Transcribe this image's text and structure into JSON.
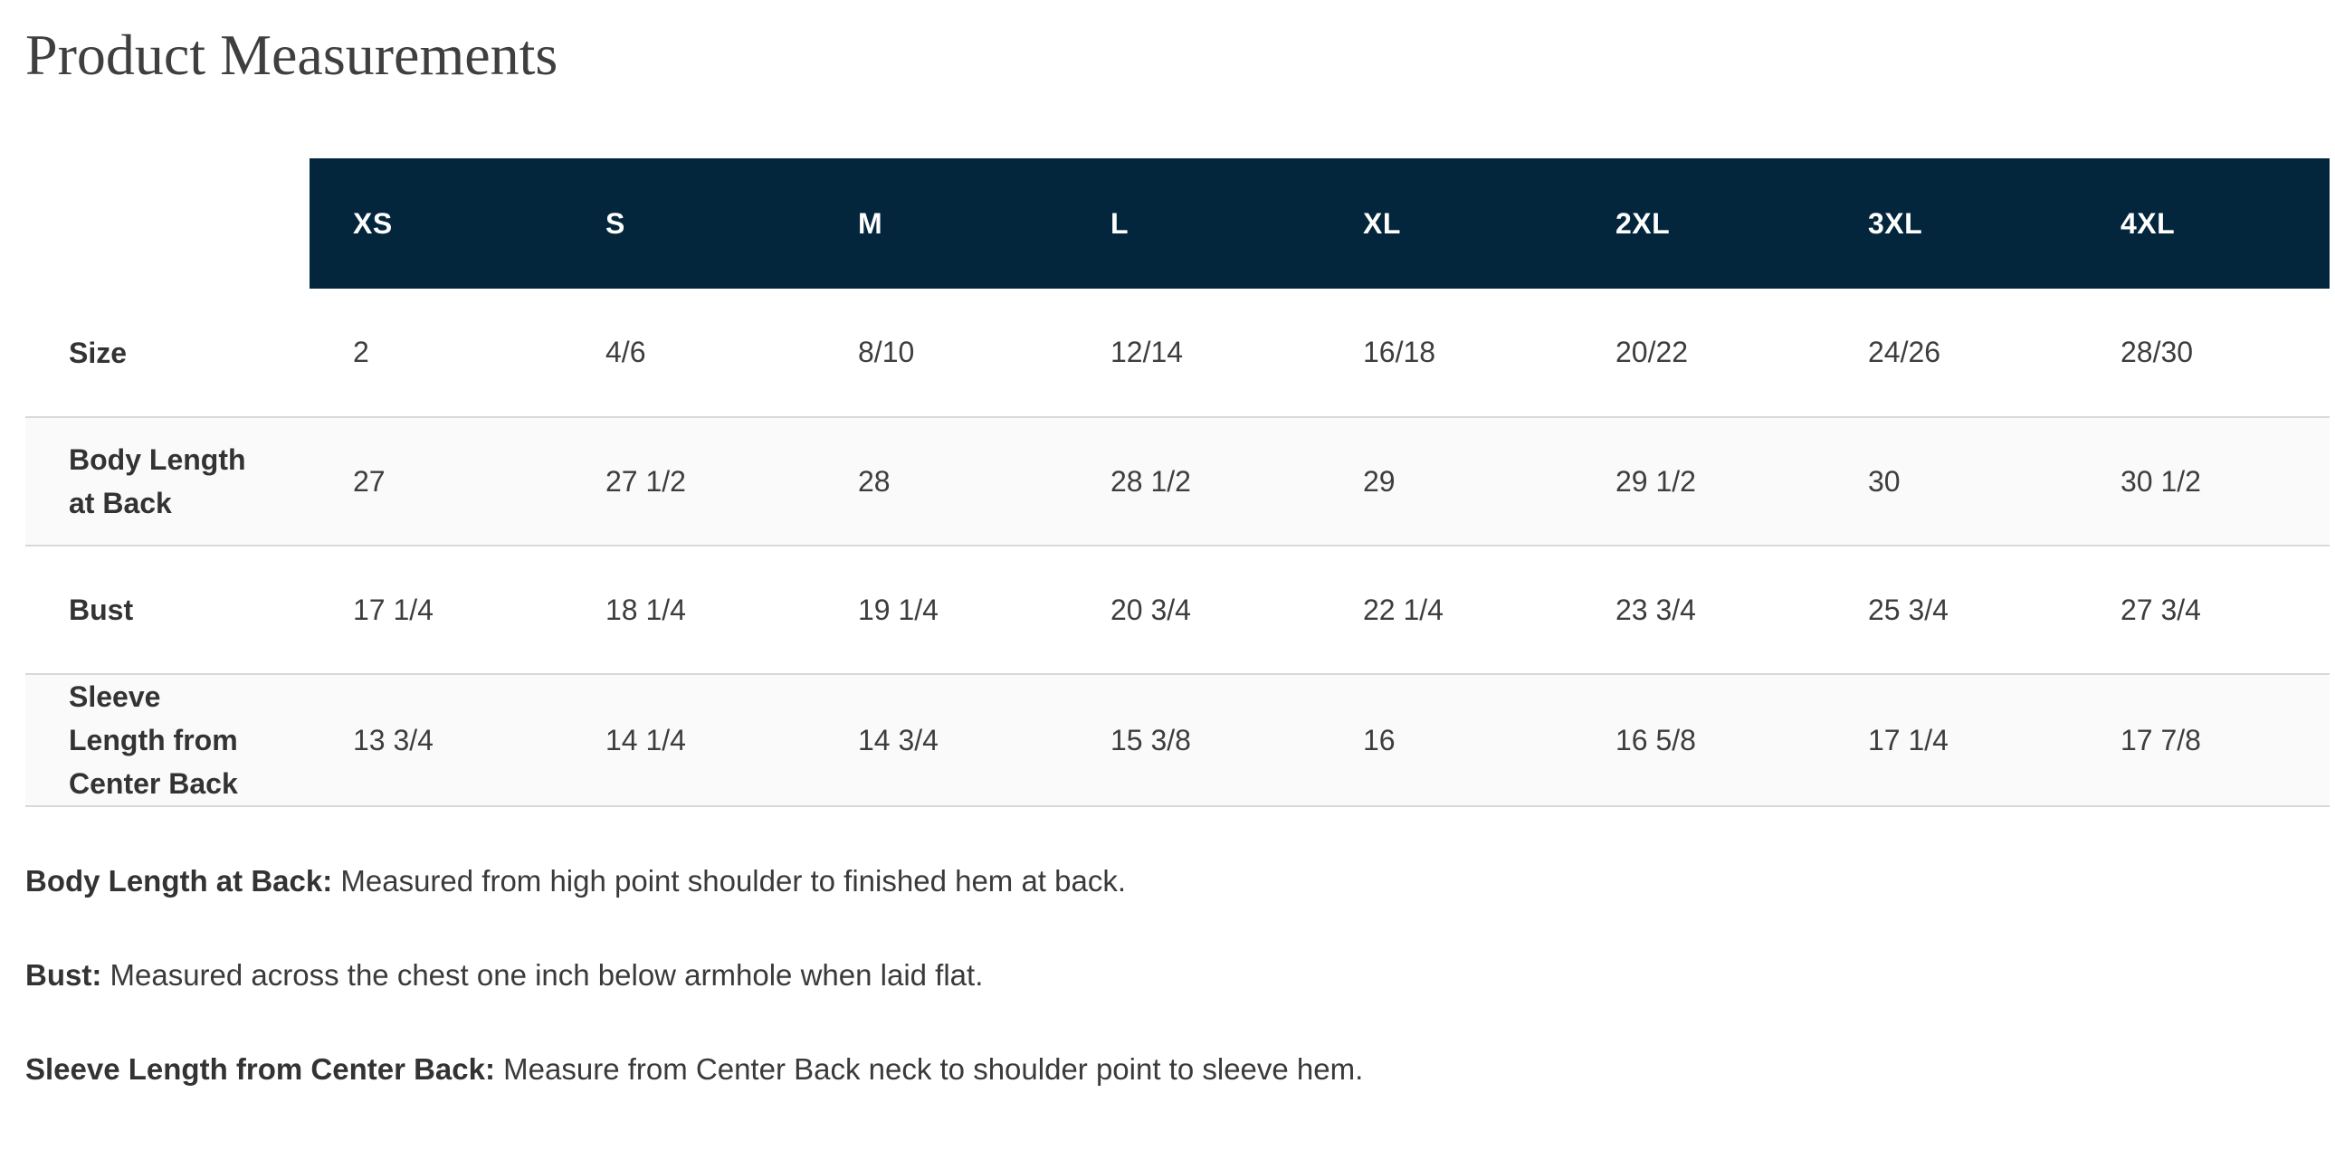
{
  "page": {
    "title": "Product Measurements"
  },
  "table": {
    "size_headers": [
      "XS",
      "S",
      "M",
      "L",
      "XL",
      "2XL",
      "3XL",
      "4XL"
    ],
    "rows": [
      {
        "label": "Size",
        "values": [
          "2",
          "4/6",
          "8/10",
          "12/14",
          "16/18",
          "20/22",
          "24/26",
          "28/30"
        ]
      },
      {
        "label": "Body Length at Back",
        "values": [
          "27",
          "27 1/2",
          "28",
          "28 1/2",
          "29",
          "29 1/2",
          "30",
          "30 1/2"
        ]
      },
      {
        "label": "Bust",
        "values": [
          "17 1/4",
          "18 1/4",
          "19 1/4",
          "20 3/4",
          "22 1/4",
          "23 3/4",
          "25 3/4",
          "27 3/4"
        ]
      },
      {
        "label": "Sleeve Length from Center Back",
        "values": [
          "13 3/4",
          "14 1/4",
          "14 3/4",
          "15 3/8",
          "16",
          "16 5/8",
          "17 1/4",
          "17 7/8"
        ]
      }
    ]
  },
  "definitions": [
    {
      "term": "Body Length at Back:",
      "text": " Measured from high point shoulder to finished hem at back."
    },
    {
      "term": "Bust:",
      "text": " Measured across the chest one inch below armhole when laid flat."
    },
    {
      "term": "Sleeve Length from Center Back:",
      "text": " Measure from Center Back neck to shoulder point to sleeve hem."
    }
  ],
  "colors": {
    "header_bg": "#03263c",
    "header_text": "#ffffff",
    "zebra_row_bg": "#fafafa",
    "divider": "#d8d8d8",
    "body_text": "#3a3a3a"
  }
}
